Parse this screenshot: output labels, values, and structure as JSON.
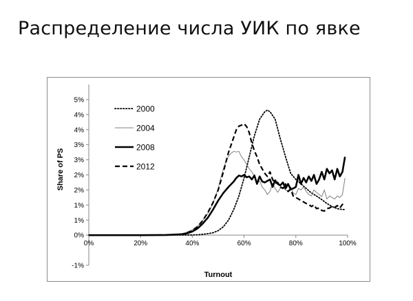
{
  "slide": {
    "title": "Распределение числа УИК по явке"
  },
  "chart_data": {
    "type": "line",
    "xlabel": "Turnout",
    "ylabel": "Share of PS",
    "xlim": [
      0,
      100
    ],
    "ylim": [
      -1,
      5
    ],
    "x_ticks": [
      {
        "value": 0,
        "label": "0%"
      },
      {
        "value": 20,
        "label": "20%"
      },
      {
        "value": 40,
        "label": "40%"
      },
      {
        "value": 60,
        "label": "60%"
      },
      {
        "value": 80,
        "label": "80%"
      },
      {
        "value": 100,
        "label": "100%"
      }
    ],
    "y_ticks": [
      {
        "value": -1,
        "label": "-1%"
      },
      {
        "value": 0,
        "label": "0%"
      },
      {
        "value": 0.5,
        "label": "1%"
      },
      {
        "value": 1,
        "label": "1%"
      },
      {
        "value": 1.5,
        "label": "2%"
      },
      {
        "value": 2,
        "label": "2%"
      },
      {
        "value": 2.5,
        "label": "3%"
      },
      {
        "value": 3,
        "label": "3%"
      },
      {
        "value": 3.5,
        "label": "4%"
      },
      {
        "value": 4,
        "label": "4%"
      },
      {
        "value": 4.5,
        "label": "5%"
      }
    ],
    "grid": false,
    "legend_position": "top-left",
    "series": [
      {
        "name": "2000",
        "style": "dotted",
        "color": "#000000",
        "x": [
          0,
          10,
          20,
          30,
          40,
          42,
          44,
          46,
          48,
          50,
          52,
          54,
          56,
          58,
          60,
          62,
          64,
          66,
          68,
          69,
          70,
          72,
          74,
          76,
          78,
          80,
          82,
          84,
          86,
          88,
          90,
          92,
          94,
          96,
          98,
          99
        ],
        "y": [
          0,
          0,
          0,
          0,
          0.005,
          0.01,
          0.03,
          0.05,
          0.08,
          0.15,
          0.28,
          0.5,
          0.85,
          1.3,
          1.9,
          2.6,
          3.3,
          3.85,
          4.1,
          4.15,
          4.1,
          3.85,
          3.2,
          2.6,
          2.05,
          1.85,
          1.7,
          1.55,
          1.4,
          1.3,
          1.18,
          1.05,
          0.95,
          0.88,
          0.85,
          0.85
        ]
      },
      {
        "name": "2004",
        "style": "thin",
        "color": "#7f7f7f",
        "x": [
          0,
          10,
          20,
          30,
          36,
          38,
          40,
          42,
          44,
          46,
          48,
          50,
          51,
          52,
          53,
          54,
          55,
          56,
          57,
          58,
          59,
          60,
          61,
          62,
          63,
          64,
          65,
          66,
          67,
          68,
          69,
          70,
          71,
          72,
          73,
          74,
          75,
          76,
          77,
          78,
          79,
          80,
          81,
          82,
          83,
          84,
          85,
          86,
          87,
          88,
          89,
          90,
          91,
          92,
          93,
          94,
          95,
          96,
          97,
          98,
          99
        ],
        "y": [
          0,
          0,
          0,
          0.01,
          0.05,
          0.1,
          0.18,
          0.3,
          0.48,
          0.72,
          1.05,
          1.55,
          1.9,
          2.2,
          2.45,
          2.62,
          2.72,
          2.78,
          2.76,
          2.78,
          2.6,
          2.5,
          2.35,
          2.2,
          2.1,
          1.95,
          1.75,
          1.8,
          1.6,
          1.5,
          1.35,
          1.45,
          1.72,
          1.55,
          1.42,
          1.55,
          1.6,
          1.5,
          1.45,
          1.6,
          1.4,
          1.35,
          1.55,
          1.5,
          1.6,
          1.45,
          1.35,
          1.3,
          1.5,
          1.42,
          1.35,
          1.28,
          1.5,
          1.2,
          1.3,
          1.25,
          1.2,
          1.3,
          1.25,
          1.35,
          1.9
        ]
      },
      {
        "name": "2008",
        "style": "thick",
        "color": "#000000",
        "x": [
          0,
          10,
          20,
          30,
          36,
          38,
          40,
          42,
          44,
          46,
          48,
          50,
          52,
          54,
          56,
          57,
          58,
          59,
          60,
          61,
          62,
          63,
          64,
          65,
          66,
          67,
          68,
          69,
          70,
          71,
          72,
          73,
          74,
          75,
          76,
          77,
          78,
          79,
          80,
          81,
          82,
          83,
          84,
          85,
          86,
          87,
          88,
          89,
          90,
          91,
          92,
          93,
          94,
          95,
          96,
          97,
          98,
          99
        ],
        "y": [
          0,
          0,
          0,
          0.005,
          0.03,
          0.06,
          0.12,
          0.22,
          0.38,
          0.58,
          0.85,
          1.15,
          1.4,
          1.6,
          1.78,
          1.9,
          1.98,
          1.95,
          2.0,
          1.92,
          1.95,
          1.85,
          1.98,
          1.7,
          1.95,
          1.78,
          1.75,
          1.8,
          1.85,
          1.6,
          1.82,
          1.7,
          1.65,
          1.75,
          1.55,
          1.7,
          1.52,
          1.55,
          1.6,
          2.0,
          1.7,
          1.9,
          1.75,
          1.95,
          1.8,
          2.0,
          1.7,
          1.85,
          2.1,
          1.85,
          2.2,
          2.05,
          2.15,
          1.85,
          2.2,
          1.95,
          2.1,
          2.6
        ]
      },
      {
        "name": "2012",
        "style": "dashed",
        "color": "#000000",
        "x": [
          0,
          10,
          20,
          30,
          36,
          38,
          40,
          42,
          44,
          46,
          48,
          50,
          52,
          54,
          56,
          57,
          58,
          59,
          60,
          61,
          62,
          63,
          64,
          65,
          66,
          67,
          68,
          69,
          70,
          71,
          72,
          73,
          74,
          75,
          76,
          77,
          78,
          79,
          80,
          81,
          82,
          83,
          84,
          85,
          86,
          87,
          88,
          89,
          90,
          91,
          92,
          93,
          94,
          95,
          96,
          97,
          98,
          99
        ],
        "y": [
          0,
          0,
          0,
          0.005,
          0.03,
          0.08,
          0.15,
          0.28,
          0.48,
          0.75,
          1.08,
          1.5,
          2.1,
          2.75,
          3.25,
          3.5,
          3.62,
          3.65,
          3.7,
          3.6,
          3.4,
          3.05,
          2.8,
          2.6,
          2.35,
          2.2,
          2.05,
          1.95,
          2.1,
          1.85,
          1.72,
          1.75,
          1.6,
          1.55,
          1.7,
          1.45,
          1.52,
          1.3,
          1.25,
          1.2,
          1.15,
          1.1,
          1.05,
          1.02,
          0.95,
          1.0,
          0.88,
          0.9,
          0.82,
          0.8,
          0.88,
          0.9,
          0.95,
          0.92,
          0.98,
          0.9,
          1.02,
          1.1
        ]
      }
    ]
  }
}
